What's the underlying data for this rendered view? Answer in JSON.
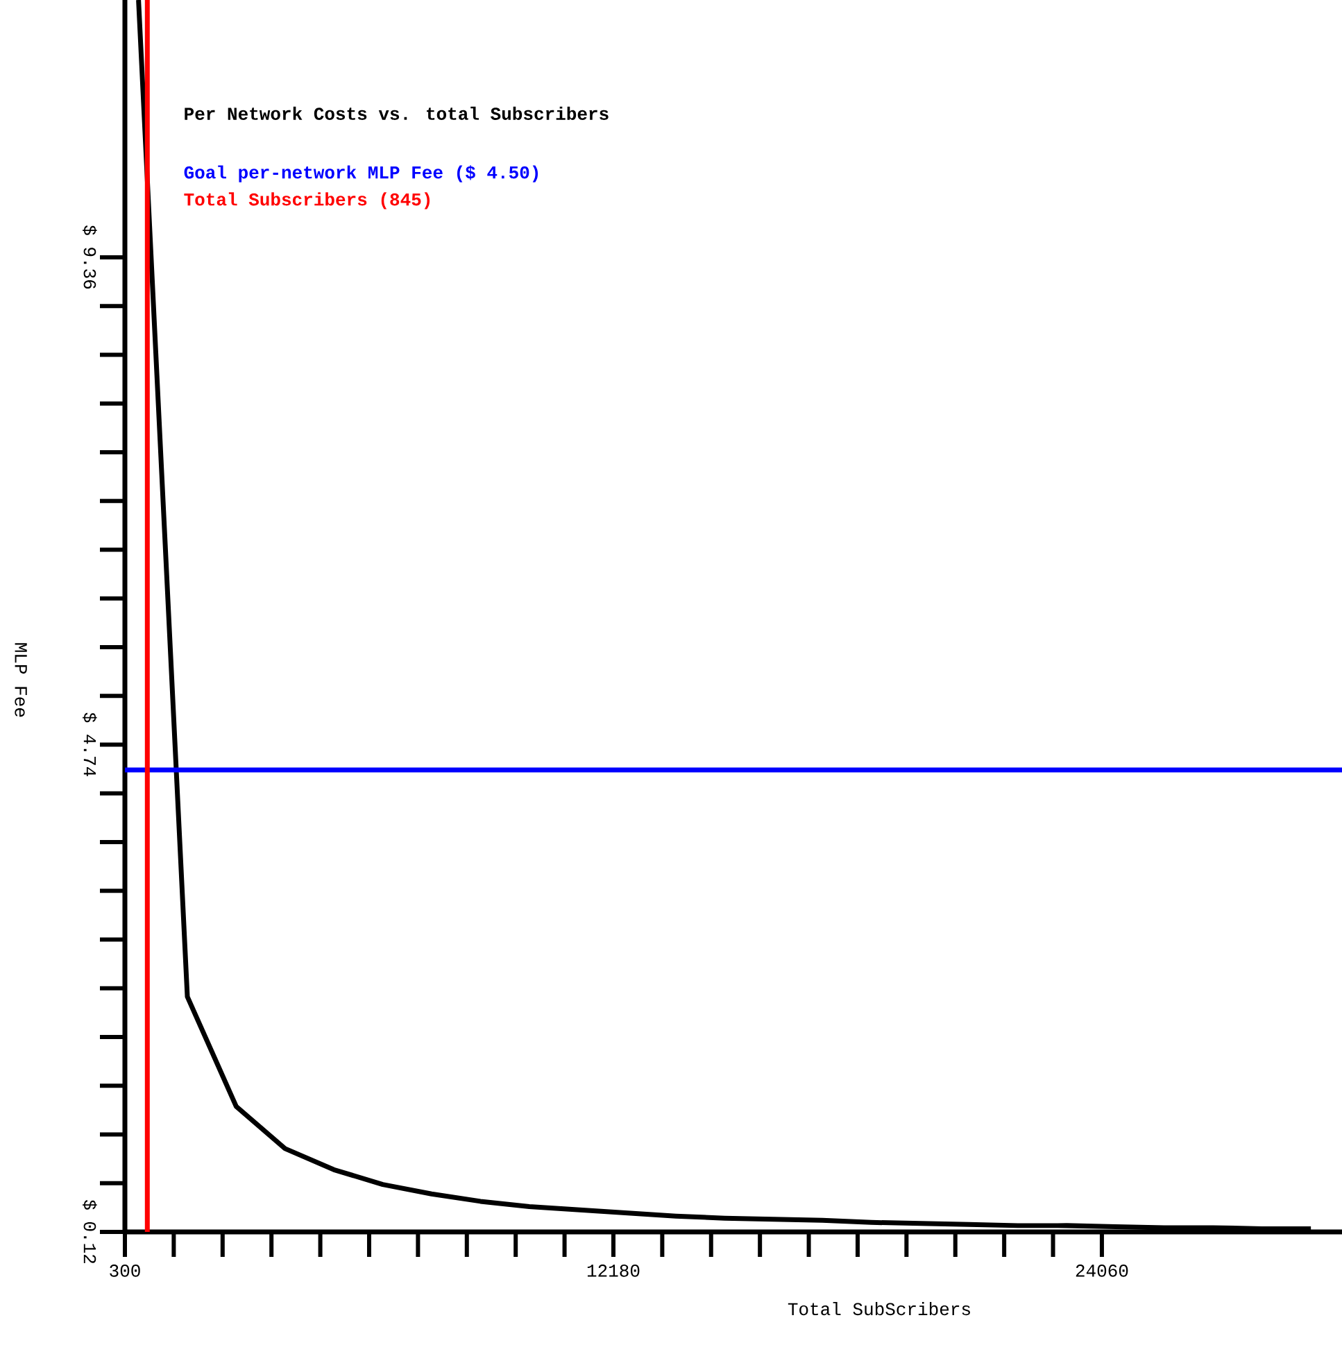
{
  "chart_data": {
    "type": "line",
    "title": "Per Network Costs vs. total Subscribers",
    "xlabel": "Total SubScribers",
    "ylabel": "MLP Fee",
    "xlim": [
      300,
      29900
    ],
    "ylim": [
      0.12,
      11.8
    ],
    "xticks": [
      300,
      12180,
      24060
    ],
    "yticks": [
      {
        "value": 0.12,
        "label": "$ 0.12"
      },
      {
        "value": 4.74,
        "label": "$ 4.74"
      },
      {
        "value": 9.36,
        "label": "$ 9.36"
      }
    ],
    "series": [
      {
        "color": "#000000",
        "x": [
          631,
          1819,
          3007,
          4195,
          5383,
          6571,
          7759,
          8947,
          10135,
          11323,
          12511,
          13699,
          14887,
          16075,
          17263,
          18451,
          19639,
          20827,
          22015,
          23203,
          24391,
          25579,
          26767,
          27955,
          29143
        ],
        "values": [
          11.8,
          2.35,
          1.31,
          0.91,
          0.71,
          0.57,
          0.48,
          0.41,
          0.36,
          0.33,
          0.3,
          0.27,
          0.25,
          0.24,
          0.23,
          0.21,
          0.2,
          0.19,
          0.18,
          0.18,
          0.17,
          0.16,
          0.16,
          0.15,
          0.15
        ]
      }
    ],
    "ref_lines": [
      {
        "axis": "y",
        "value": 4.5,
        "label": "Goal per-network MLP Fee ($ 4.50)",
        "color": "#0000ff"
      },
      {
        "axis": "x",
        "value": 845,
        "label": "Total Subscribers (845)",
        "color": "#ff0000"
      }
    ],
    "grid": false,
    "marker": "none",
    "line_style": "solid"
  }
}
